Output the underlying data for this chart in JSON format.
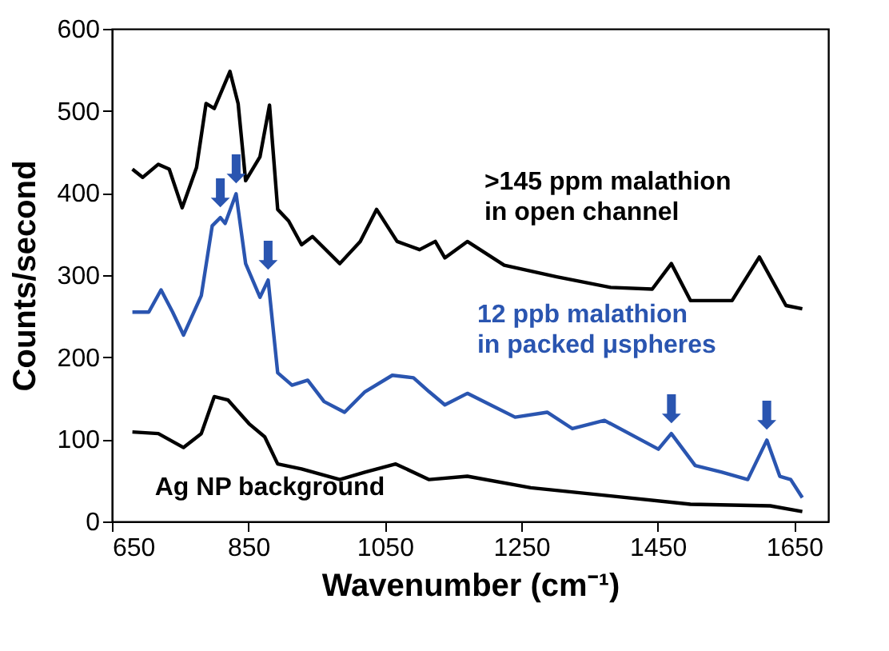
{
  "chart_data": {
    "type": "line",
    "xlabel": "Wavenumber (cm⁻¹)",
    "ylabel": "Counts/second",
    "xlim": [
      650,
      1700
    ],
    "xticks": [
      650,
      850,
      1050,
      1250,
      1450,
      1650
    ],
    "ylim": [
      0,
      600
    ],
    "yticks": [
      0,
      100,
      200,
      300,
      400,
      500,
      600
    ],
    "grid": false,
    "legend": false,
    "line_style": "solid",
    "marker": "none",
    "series": [
      {
        "name": ">145 ppm malathion\nin open channel",
        "color": "#000000",
        "x": [
          680,
          695,
          718,
          734,
          753,
          774,
          788,
          800,
          823,
          835,
          846,
          867,
          881,
          893,
          909,
          928,
          944,
          984,
          1014,
          1038,
          1068,
          1101,
          1124,
          1138,
          1171,
          1225,
          1302,
          1381,
          1442,
          1470,
          1498,
          1559,
          1599,
          1638,
          1662
        ],
        "values": [
          429,
          419,
          435,
          429,
          382,
          431,
          509,
          503,
          548,
          509,
          415,
          444,
          507,
          380,
          366,
          337,
          347,
          314,
          341,
          380,
          341,
          331,
          341,
          321,
          341,
          312,
          298,
          285,
          283,
          314,
          269,
          269,
          322,
          263,
          259
        ]
      },
      {
        "name": "12 ppb malathion\nin packed μspheres",
        "color": "#2a55b0",
        "x": [
          680,
          704,
          722,
          739,
          755,
          781,
          797,
          809,
          816,
          832,
          846,
          867,
          879,
          893,
          914,
          937,
          961,
          991,
          1021,
          1061,
          1092,
          1115,
          1138,
          1171,
          1241,
          1288,
          1325,
          1372,
          1451,
          1470,
          1505,
          1544,
          1582,
          1610,
          1629,
          1645,
          1662
        ],
        "values": [
          255,
          255,
          282,
          255,
          227,
          275,
          360,
          370,
          363,
          399,
          314,
          273,
          294,
          181,
          166,
          172,
          146,
          133,
          158,
          178,
          175,
          158,
          142,
          156,
          127,
          133,
          113,
          123,
          88,
          107,
          68,
          60,
          51,
          99,
          55,
          51,
          29
        ]
      },
      {
        "name": "Ag NP background",
        "color": "#000000",
        "x": [
          680,
          718,
          755,
          781,
          800,
          820,
          851,
          874,
          893,
          928,
          984,
          1021,
          1066,
          1115,
          1171,
          1264,
          1381,
          1498,
          1615,
          1662
        ],
        "values": [
          109,
          107,
          90,
          107,
          152,
          148,
          119,
          103,
          70,
          64,
          51,
          60,
          70,
          51,
          55,
          41,
          31,
          21,
          19,
          12
        ]
      }
    ],
    "annotations": [
      {
        "text": "⬇",
        "x": 809,
        "y": 370
      },
      {
        "text": "⬇",
        "x": 832,
        "y": 399
      },
      {
        "text": "⬇",
        "x": 879,
        "y": 294
      },
      {
        "text": "⬇",
        "x": 1470,
        "y": 107
      },
      {
        "text": "⬇",
        "x": 1610,
        "y": 99
      }
    ]
  }
}
